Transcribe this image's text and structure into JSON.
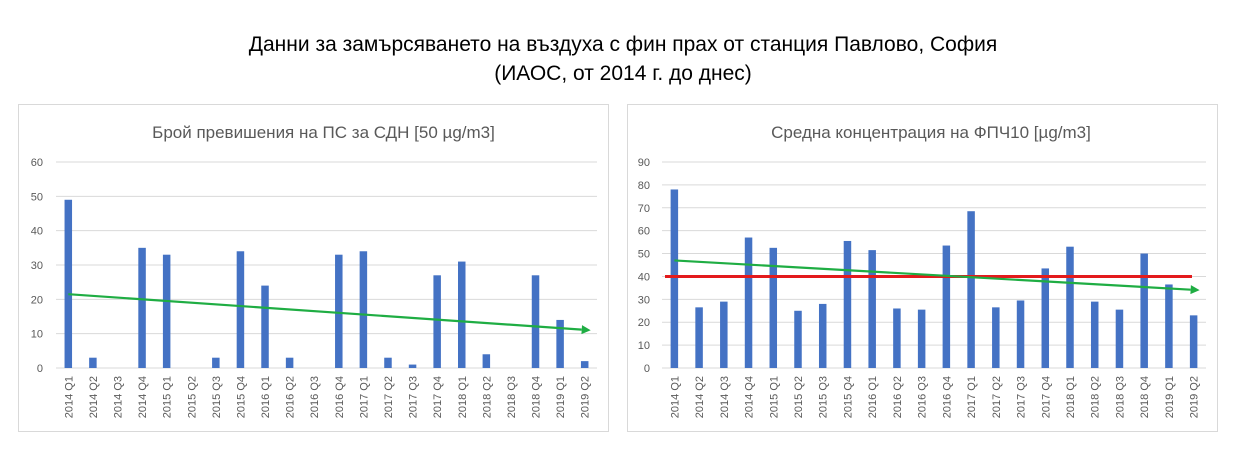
{
  "header": {
    "title_line1": "Данни за замърсяването на въздуха с фин прах от станция Павлово, София",
    "title_line2": "(ИАОС, от 2014 г. до днес)"
  },
  "colors": {
    "bar": "#4472c4",
    "trend": "#1fad43",
    "limit": "#e31a1c",
    "grid": "#d9d9d9",
    "text": "#595959"
  },
  "chart_data": [
    {
      "type": "bar",
      "title": "Брой превишения на ПС за СДН [50 µg/m3]",
      "categories": [
        "2014 Q1",
        "2014 Q2",
        "2014 Q3",
        "2014 Q4",
        "2015 Q1",
        "2015 Q2",
        "2015 Q3",
        "2015 Q4",
        "2016 Q1",
        "2016 Q2",
        "2016 Q3",
        "2016 Q4",
        "2017 Q1",
        "2017 Q2",
        "2017 Q3",
        "2017 Q4",
        "2018 Q1",
        "2018 Q2",
        "2018 Q3",
        "2018 Q4",
        "2019 Q1",
        "2019 Q2"
      ],
      "values": [
        49,
        3,
        0,
        35,
        33,
        0,
        3,
        34,
        24,
        3,
        0,
        33,
        34,
        3,
        1,
        27,
        31,
        4,
        0,
        27,
        14,
        2
      ],
      "ylim": [
        0,
        60
      ],
      "yticks": [
        0,
        10,
        20,
        30,
        40,
        50,
        60
      ],
      "grid": true,
      "trendline": {
        "start": 21.5,
        "end": 11
      }
    },
    {
      "type": "bar",
      "title": "Средна концентрация на ФПЧ10 [µg/m3]",
      "categories": [
        "2014 Q1",
        "2014 Q2",
        "2014 Q3",
        "2014 Q4",
        "2015 Q1",
        "2015 Q2",
        "2015 Q3",
        "2015 Q4",
        "2016 Q1",
        "2016 Q2",
        "2016 Q3",
        "2016 Q4",
        "2017 Q1",
        "2017 Q2",
        "2017 Q3",
        "2017 Q4",
        "2018 Q1",
        "2018 Q2",
        "2018 Q3",
        "2018 Q4",
        "2019 Q1",
        "2019 Q2"
      ],
      "values": [
        78,
        26.5,
        29,
        57,
        52.5,
        25,
        28,
        55.5,
        51.5,
        26,
        25.5,
        53.5,
        68.5,
        26.5,
        29.5,
        43.5,
        53,
        29,
        25.5,
        50,
        36.5,
        23
      ],
      "ylim": [
        0,
        90
      ],
      "yticks": [
        0,
        10,
        20,
        30,
        40,
        50,
        60,
        70,
        80,
        90
      ],
      "grid": true,
      "trendline": {
        "start": 47,
        "end": 34
      },
      "reference_line": 40
    }
  ]
}
